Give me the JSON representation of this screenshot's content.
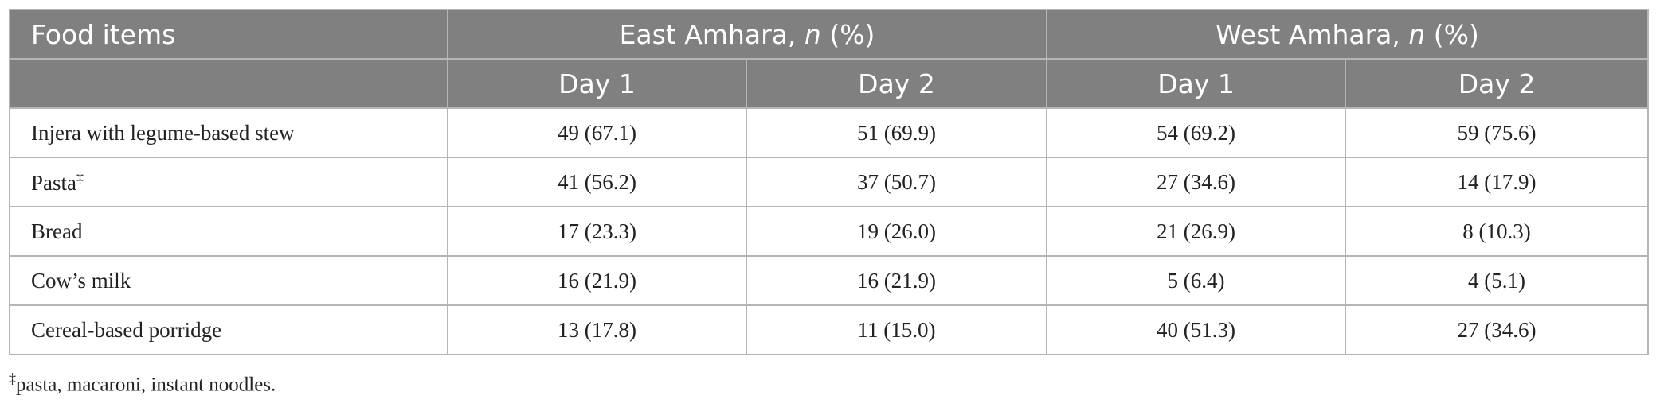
{
  "table": {
    "header": {
      "first": "Food items",
      "groups": [
        {
          "name": "East Amhara, ",
          "italic": "n",
          "suffix": " (%)"
        },
        {
          "name": "West Amhara, ",
          "italic": "n",
          "suffix": " (%)"
        }
      ],
      "days": [
        "Day 1",
        "Day 2",
        "Day 1",
        "Day 2"
      ]
    },
    "rows": [
      {
        "label": "Injera with legume-based stew",
        "cells": [
          "49 (67.1)",
          "51 (69.9)",
          "54 (69.2)",
          "59 (75.6)"
        ]
      },
      {
        "label": "Pasta",
        "mark": "‡",
        "cells": [
          "41 (56.2)",
          "37 (50.7)",
          "27 (34.6)",
          "14 (17.9)"
        ]
      },
      {
        "label": "Bread",
        "cells": [
          "17 (23.3)",
          "19 (26.0)",
          "21 (26.9)",
          "8 (10.3)"
        ]
      },
      {
        "label": "Cow’s milk",
        "cells": [
          "16 (21.9)",
          "16 (21.9)",
          "5 (6.4)",
          "4 (5.1)"
        ]
      },
      {
        "label": "Cereal-based porridge",
        "cells": [
          "13 (17.8)",
          "11 (15.0)",
          "40 (51.3)",
          "27 (34.6)"
        ]
      }
    ]
  },
  "footnote": {
    "mark": "‡",
    "text": "pasta, macaroni, instant noodles."
  }
}
